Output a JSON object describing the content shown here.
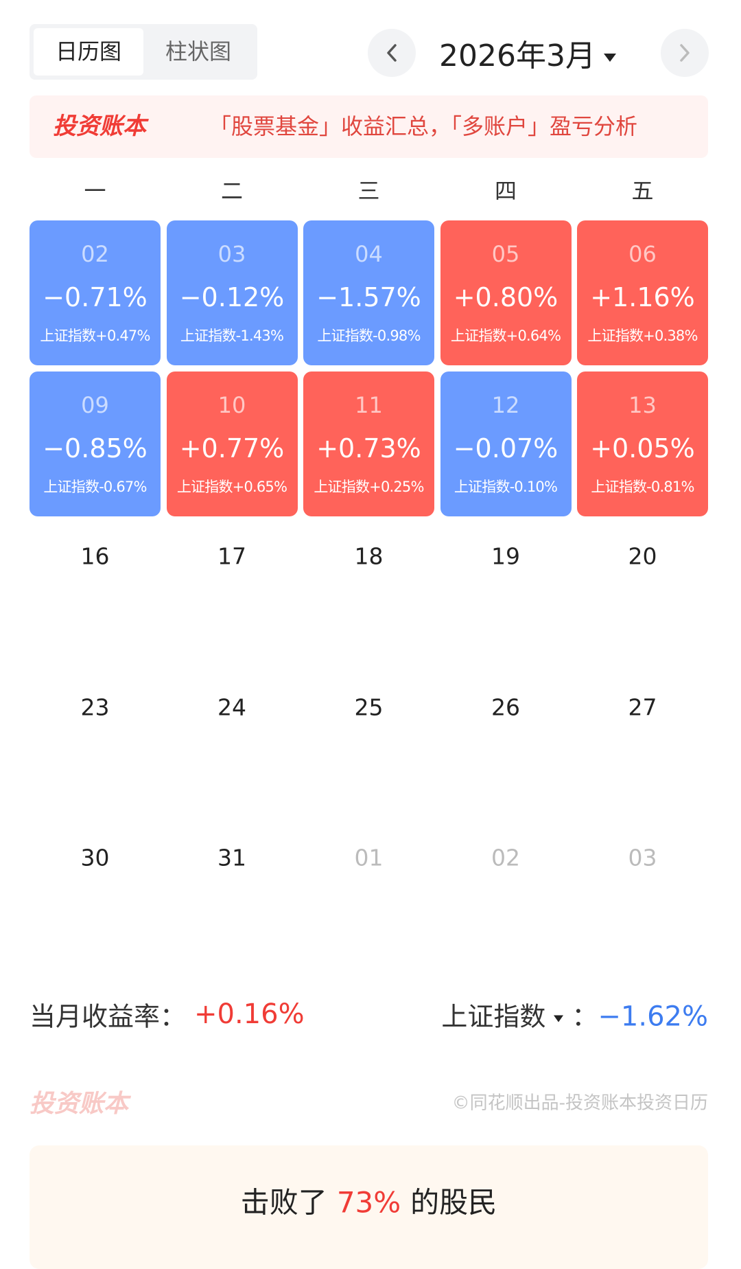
{
  "tabs": [
    "日历图",
    "柱状图"
  ],
  "month": "2026年3月",
  "banner": {
    "brand": "投资账本",
    "text": "「股票基金」收益汇总，「多账户」盈亏分析"
  },
  "weekdays": [
    "一",
    "二",
    "三",
    "四",
    "五"
  ],
  "weeks": [
    [
      {
        "day": "02",
        "change": "−0.71%",
        "index": "上证指数+0.47%",
        "color": "#6b9bff"
      },
      {
        "day": "03",
        "change": "−0.12%",
        "index": "上证指数-1.43%",
        "color": "#6b9bff"
      },
      {
        "day": "04",
        "change": "−1.57%",
        "index": "上证指数-0.98%",
        "color": "#6b9bff"
      },
      {
        "day": "05",
        "change": "+0.80%",
        "index": "上证指数+0.64%",
        "color": "#ff635a"
      },
      {
        "day": "06",
        "change": "+1.16%",
        "index": "上证指数+0.38%",
        "color": "#ff635a"
      }
    ],
    [
      {
        "day": "09",
        "change": "−0.85%",
        "index": "上证指数-0.67%",
        "color": "#6b9bff"
      },
      {
        "day": "10",
        "change": "+0.77%",
        "index": "上证指数+0.65%",
        "color": "#ff635a"
      },
      {
        "day": "11",
        "change": "+0.73%",
        "index": "上证指数+0.25%",
        "color": "#ff635a"
      },
      {
        "day": "12",
        "change": "−0.07%",
        "index": "上证指数-0.10%",
        "color": "#6b9bff"
      },
      {
        "day": "13",
        "change": "+0.05%",
        "index": "上证指数-0.81%",
        "color": "#ff635a"
      }
    ],
    [
      {
        "day": "16"
      },
      {
        "day": "17"
      },
      {
        "day": "18"
      },
      {
        "day": "19"
      },
      {
        "day": "20"
      }
    ],
    [
      {
        "day": "23"
      },
      {
        "day": "24"
      },
      {
        "day": "25"
      },
      {
        "day": "26"
      },
      {
        "day": "27"
      }
    ],
    [
      {
        "day": "30"
      },
      {
        "day": "31"
      },
      {
        "day": "01",
        "muted": true
      },
      {
        "day": "02",
        "muted": true
      },
      {
        "day": "03",
        "muted": true
      }
    ]
  ],
  "summary": {
    "label": "当月收益率：",
    "value": "+0.16%",
    "index_label": "上证指数",
    "separator": "：",
    "index_value": "−1.62%"
  },
  "footer": {
    "brand": "投资账本",
    "credit": "©同花顺出品-投资账本投资日历"
  },
  "rank": {
    "prefix": "击败了",
    "value": "73%",
    "suffix": "的股民"
  }
}
